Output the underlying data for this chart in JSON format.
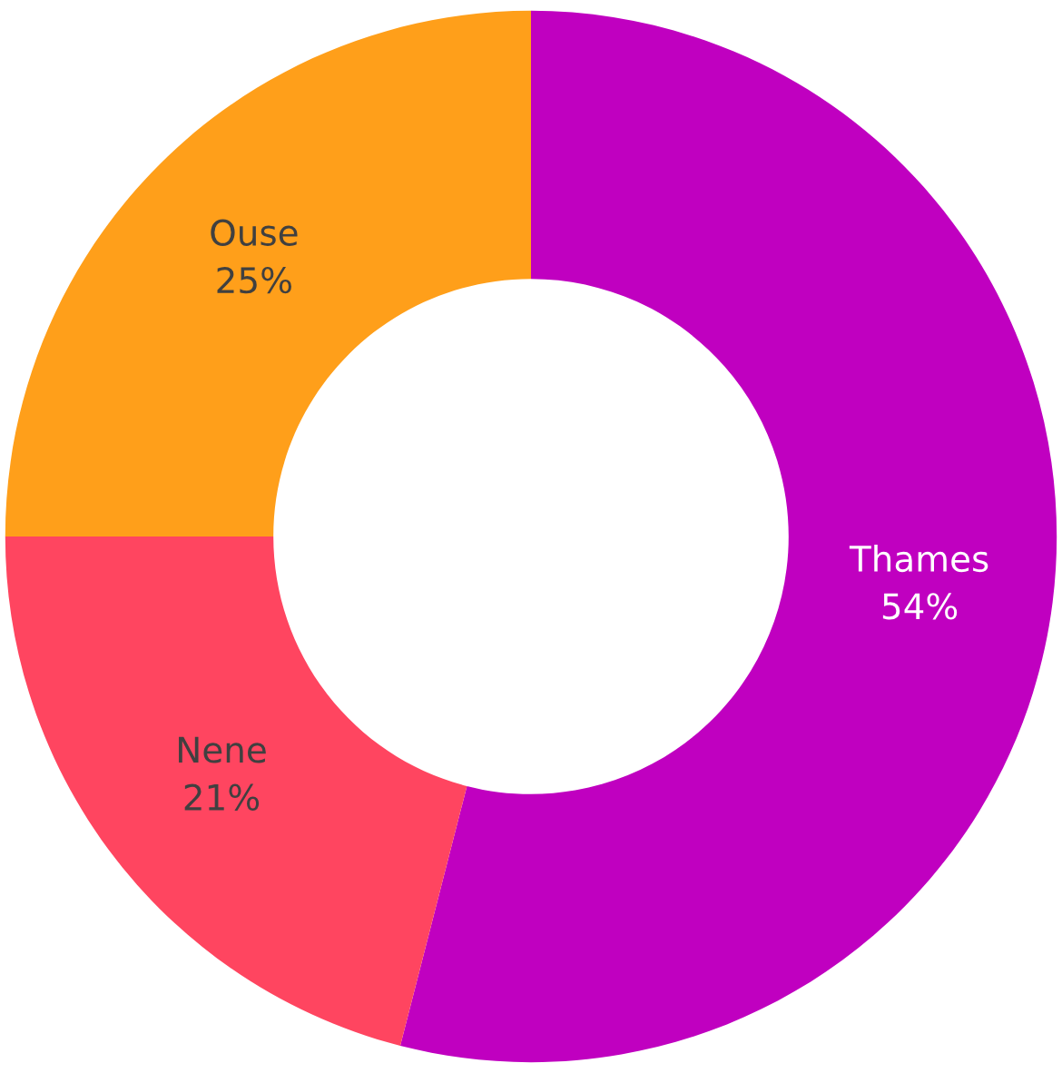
{
  "chart_data": {
    "type": "donut",
    "categories": [
      "Thames",
      "Nene",
      "Ouse"
    ],
    "values": [
      54,
      21,
      25
    ],
    "colors": [
      "#c000c0",
      "#ff4560",
      "#ff9f1a"
    ],
    "value_labels": [
      "54%",
      "21%",
      "25%"
    ],
    "legend": false
  }
}
